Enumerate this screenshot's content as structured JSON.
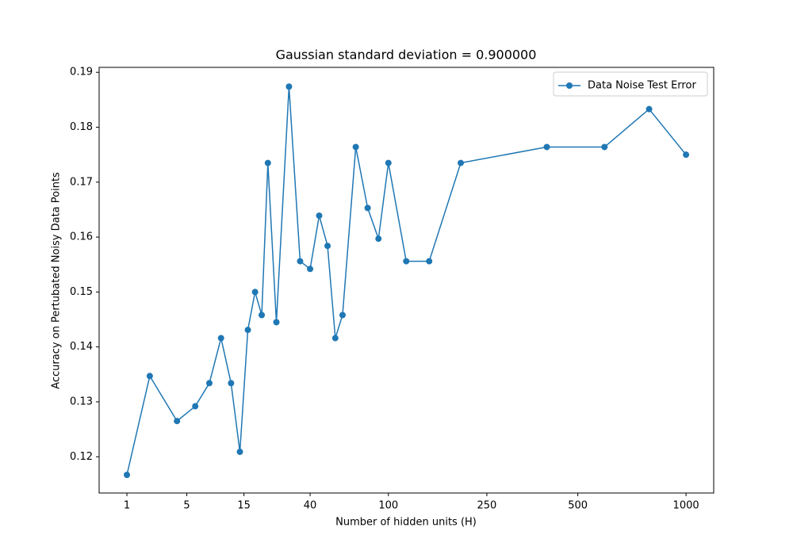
{
  "chart_data": {
    "type": "line",
    "title": "Gaussian standard deviation = 0.900000",
    "x_label": "Number of hidden units (H)",
    "y_label": "Accuracy on Pertubated Noisy Data Points",
    "x": [
      1,
      2,
      4,
      6,
      8,
      10,
      12,
      14,
      16,
      18,
      20,
      22,
      25,
      30,
      35,
      40,
      45,
      50,
      55,
      60,
      70,
      80,
      90,
      100,
      120,
      150,
      200,
      400,
      600,
      800,
      1000
    ],
    "series": [
      {
        "name": "Data Noise Test Error",
        "color": "#1f77b4",
        "values": [
          0.1167,
          0.1347,
          0.1265,
          0.1292,
          0.1334,
          0.1416,
          0.1334,
          0.1209,
          0.1431,
          0.15,
          0.1458,
          0.1735,
          0.1445,
          0.1874,
          0.1556,
          0.1542,
          0.1639,
          0.1584,
          0.1416,
          0.1458,
          0.1764,
          0.1653,
          0.1597,
          0.1735,
          0.1556,
          0.1556,
          0.1735,
          0.1764,
          0.1764,
          0.1833,
          0.175
        ]
      }
    ],
    "xscale": "power",
    "xscale_exponent": 0.25,
    "xlim": [
      0.352,
      1173
    ],
    "ylim": [
      0.1134,
      0.1909
    ],
    "xticks": [
      1,
      5,
      15,
      40,
      100,
      250,
      500,
      1000
    ],
    "yticks": [
      0.12,
      0.13,
      0.14,
      0.15,
      0.16,
      0.17,
      0.18,
      0.19
    ],
    "grid": false,
    "legend": "upper right"
  }
}
